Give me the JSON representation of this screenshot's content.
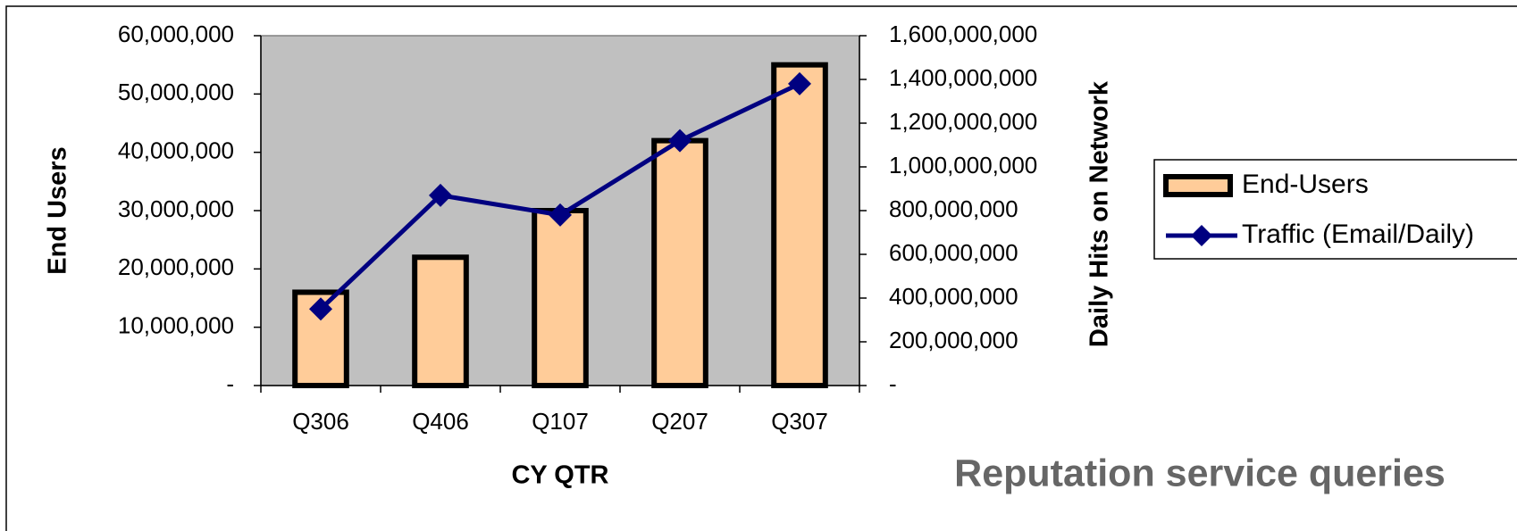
{
  "chart_data": {
    "type": "bar_line",
    "x_label": "CY QTR",
    "y_label": "End Users",
    "y2_label": "Daily Hits on Network",
    "annotation": "Reputation service queries",
    "categories": [
      "Q306",
      "Q406",
      "Q107",
      "Q207",
      "Q307"
    ],
    "series": [
      {
        "name": "End-Users",
        "type": "bar",
        "color": "#ffcc99",
        "values": [
          16000000,
          22000000,
          30000000,
          42000000,
          55000000
        ]
      },
      {
        "name": "Traffic (Email/Daily)",
        "type": "line",
        "axis": "y2",
        "color": "#000080",
        "values": [
          350000000,
          870000000,
          780000000,
          1120000000,
          1380000000
        ]
      }
    ],
    "ylim": [
      0,
      60000000
    ],
    "yticks": [
      {
        "value": 0,
        "label": "-"
      },
      {
        "value": 10000000,
        "label": "10,000,000"
      },
      {
        "value": 20000000,
        "label": "20,000,000"
      },
      {
        "value": 30000000,
        "label": "30,000,000"
      },
      {
        "value": 40000000,
        "label": "40,000,000"
      },
      {
        "value": 50000000,
        "label": "50,000,000"
      },
      {
        "value": 60000000,
        "label": "60,000,000"
      }
    ],
    "y2lim": [
      0,
      1600000000
    ],
    "y2ticks": [
      {
        "value": 0,
        "label": "-"
      },
      {
        "value": 200000000,
        "label": "200,000,000"
      },
      {
        "value": 400000000,
        "label": "400,000,000"
      },
      {
        "value": 600000000,
        "label": "600,000,000"
      },
      {
        "value": 800000000,
        "label": "800,000,000"
      },
      {
        "value": 1000000000,
        "label": "1,000,000,000"
      },
      {
        "value": 1200000000,
        "label": "1,200,000,000"
      },
      {
        "value": 1400000000,
        "label": "1,400,000,000"
      },
      {
        "value": 1600000000,
        "label": "1,600,000,000"
      }
    ],
    "plot_background": "#c0c0c0"
  }
}
